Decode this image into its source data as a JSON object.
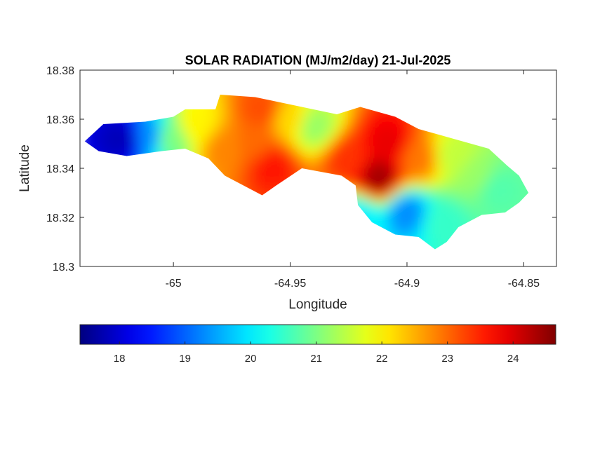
{
  "chart_data": {
    "type": "heatmap",
    "title": "SOLAR RADIATION (MJ/m2/day) 21-Jul-2025",
    "xlabel": "Longitude",
    "ylabel": "Latitude",
    "xlim": [
      -65.04,
      -64.836
    ],
    "ylim": [
      18.3,
      18.38
    ],
    "x_ticks": [
      -65,
      -64.95,
      -64.9,
      -64.85
    ],
    "x_tick_labels": [
      "-65",
      "-64.95",
      "-64.9",
      "-64.85"
    ],
    "y_ticks": [
      18.3,
      18.32,
      18.34,
      18.36,
      18.38
    ],
    "y_tick_labels": [
      "18.3",
      "18.32",
      "18.34",
      "18.36",
      "18.38"
    ],
    "colormap": "jet",
    "colorbar": {
      "location": "bottom",
      "range": [
        17.4,
        24.65
      ],
      "ticks": [
        18,
        19,
        20,
        21,
        22,
        23,
        24
      ],
      "tick_labels": [
        "18",
        "19",
        "20",
        "21",
        "22",
        "23",
        "24"
      ]
    },
    "island_outline": [
      [
        -65.038,
        18.351
      ],
      [
        -65.03,
        18.358
      ],
      [
        -65.012,
        18.359
      ],
      [
        -65.0,
        18.361
      ],
      [
        -64.995,
        18.364
      ],
      [
        -64.982,
        18.364
      ],
      [
        -64.98,
        18.37
      ],
      [
        -64.965,
        18.369
      ],
      [
        -64.94,
        18.364
      ],
      [
        -64.93,
        18.362
      ],
      [
        -64.92,
        18.365
      ],
      [
        -64.905,
        18.361
      ],
      [
        -64.895,
        18.356
      ],
      [
        -64.88,
        18.352
      ],
      [
        -64.865,
        18.348
      ],
      [
        -64.857,
        18.341
      ],
      [
        -64.852,
        18.337
      ],
      [
        -64.848,
        18.33
      ],
      [
        -64.852,
        18.326
      ],
      [
        -64.858,
        18.322
      ],
      [
        -64.868,
        18.321
      ],
      [
        -64.878,
        18.316
      ],
      [
        -64.883,
        18.31
      ],
      [
        -64.888,
        18.307
      ],
      [
        -64.895,
        18.312
      ],
      [
        -64.905,
        18.313
      ],
      [
        -64.915,
        18.318
      ],
      [
        -64.921,
        18.325
      ],
      [
        -64.922,
        18.333
      ],
      [
        -64.928,
        18.337
      ],
      [
        -64.945,
        18.34
      ],
      [
        -64.956,
        18.333
      ],
      [
        -64.962,
        18.329
      ],
      [
        -64.97,
        18.333
      ],
      [
        -64.978,
        18.337
      ],
      [
        -64.985,
        18.344
      ],
      [
        -64.995,
        18.348
      ],
      [
        -65.005,
        18.347
      ],
      [
        -65.02,
        18.345
      ],
      [
        -65.032,
        18.347
      ]
    ],
    "values": [
      {
        "lon": -65.022,
        "lat": 18.352,
        "value": 17.8
      },
      {
        "lon": -65.01,
        "lat": 18.353,
        "value": 19.3
      },
      {
        "lon": -65.002,
        "lat": 18.352,
        "value": 21.0
      },
      {
        "lon": -64.99,
        "lat": 18.358,
        "value": 22.0
      },
      {
        "lon": -64.978,
        "lat": 18.348,
        "value": 22.8
      },
      {
        "lon": -64.965,
        "lat": 18.35,
        "value": 23.0
      },
      {
        "lon": -64.958,
        "lat": 18.341,
        "value": 23.6
      },
      {
        "lon": -64.962,
        "lat": 18.364,
        "value": 23.2
      },
      {
        "lon": -64.95,
        "lat": 18.36,
        "value": 22.2
      },
      {
        "lon": -64.94,
        "lat": 18.357,
        "value": 21.2
      },
      {
        "lon": -64.925,
        "lat": 18.344,
        "value": 23.4
      },
      {
        "lon": -64.912,
        "lat": 18.336,
        "value": 24.4
      },
      {
        "lon": -64.908,
        "lat": 18.35,
        "value": 23.9
      },
      {
        "lon": -64.895,
        "lat": 18.344,
        "value": 22.9
      },
      {
        "lon": -64.88,
        "lat": 18.345,
        "value": 21.5
      },
      {
        "lon": -64.87,
        "lat": 18.337,
        "value": 21.2
      },
      {
        "lon": -64.862,
        "lat": 18.332,
        "value": 20.7
      },
      {
        "lon": -64.9,
        "lat": 18.322,
        "value": 19.3
      },
      {
        "lon": -64.885,
        "lat": 18.318,
        "value": 20.5
      },
      {
        "lon": -64.92,
        "lat": 18.32,
        "value": 20.0
      }
    ],
    "value_range": [
      17.4,
      24.65
    ]
  }
}
